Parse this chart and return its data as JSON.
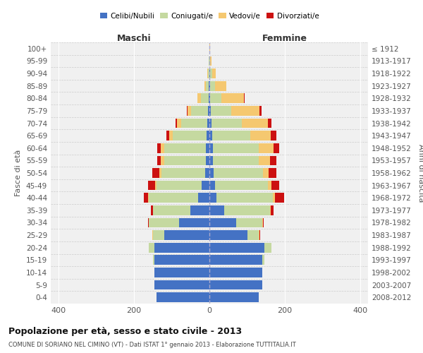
{
  "age_groups": [
    "0-4",
    "5-9",
    "10-14",
    "15-19",
    "20-24",
    "25-29",
    "30-34",
    "35-39",
    "40-44",
    "45-49",
    "50-54",
    "55-59",
    "60-64",
    "65-69",
    "70-74",
    "75-79",
    "80-84",
    "85-89",
    "90-94",
    "95-99",
    "100+"
  ],
  "birth_years": [
    "2008-2012",
    "2003-2007",
    "1998-2002",
    "1993-1997",
    "1988-1992",
    "1983-1987",
    "1978-1982",
    "1973-1977",
    "1968-1972",
    "1963-1967",
    "1958-1962",
    "1953-1957",
    "1948-1952",
    "1943-1947",
    "1938-1942",
    "1933-1937",
    "1928-1932",
    "1923-1927",
    "1918-1922",
    "1913-1917",
    "≤ 1912"
  ],
  "male": {
    "celibi": [
      140,
      145,
      145,
      145,
      145,
      120,
      80,
      50,
      30,
      20,
      12,
      10,
      10,
      8,
      5,
      3,
      2,
      1,
      0,
      0,
      0
    ],
    "coniugati": [
      0,
      0,
      0,
      4,
      15,
      30,
      80,
      100,
      130,
      120,
      115,
      110,
      110,
      90,
      70,
      45,
      20,
      8,
      3,
      1,
      0
    ],
    "vedovi": [
      0,
      0,
      0,
      0,
      0,
      2,
      0,
      0,
      2,
      3,
      5,
      8,
      8,
      8,
      10,
      10,
      10,
      5,
      2,
      0,
      0
    ],
    "divorziati": [
      0,
      0,
      0,
      0,
      0,
      0,
      2,
      5,
      12,
      20,
      20,
      10,
      10,
      8,
      5,
      2,
      0,
      0,
      0,
      0,
      0
    ]
  },
  "female": {
    "nubili": [
      130,
      140,
      140,
      140,
      145,
      100,
      70,
      40,
      18,
      15,
      12,
      10,
      10,
      8,
      5,
      3,
      2,
      2,
      2,
      0,
      0
    ],
    "coniugate": [
      0,
      0,
      0,
      5,
      20,
      30,
      70,
      120,
      150,
      140,
      130,
      120,
      120,
      100,
      80,
      55,
      30,
      12,
      5,
      2,
      0
    ],
    "vedove": [
      0,
      0,
      0,
      0,
      0,
      2,
      2,
      2,
      5,
      10,
      15,
      30,
      40,
      55,
      70,
      75,
      60,
      30,
      10,
      3,
      1
    ],
    "divorziate": [
      0,
      0,
      0,
      0,
      0,
      2,
      2,
      8,
      25,
      20,
      20,
      18,
      15,
      15,
      10,
      5,
      2,
      0,
      0,
      0,
      0
    ]
  },
  "colors": {
    "celibi": "#4472c4",
    "coniugati": "#c5d9a0",
    "vedovi": "#f5c870",
    "divorziati": "#cc1111"
  },
  "xlim": 420,
  "title": "Popolazione per età, sesso e stato civile - 2013",
  "subtitle": "COMUNE DI SORIANO NEL CIMINO (VT) - Dati ISTAT 1° gennaio 2013 - Elaborazione TUTTITALIA.IT",
  "legend_labels": [
    "Celibi/Nubili",
    "Coniugati/e",
    "Vedovi/e",
    "Divorziati/e"
  ],
  "xlabel_left": "Maschi",
  "xlabel_right": "Femmine",
  "ylabel_left": "Fasce di età",
  "ylabel_right": "Anni di nascita",
  "bg_color": "#f0f0f0"
}
